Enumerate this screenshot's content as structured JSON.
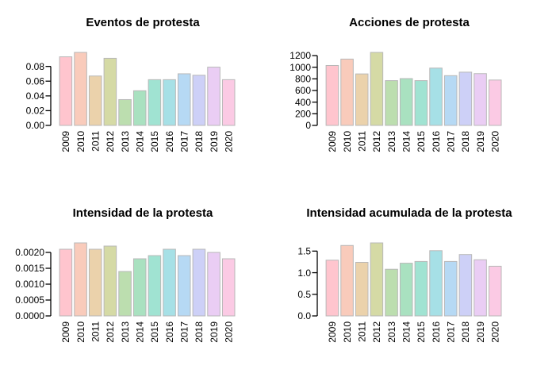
{
  "page": {
    "background": "#ffffff"
  },
  "style": {
    "bar_colors": [
      "#FFC5CE",
      "#F9CBBB",
      "#EBD2AB",
      "#D5DAA5",
      "#BCDEAF",
      "#A9E1C0",
      "#A0E3D2",
      "#A6E0E6",
      "#B6D9F4",
      "#CDD0F7",
      "#EACDF4",
      "#FBCAE4"
    ],
    "bar_border_color": "#b8b8b8",
    "axis_color": "#000000",
    "title_color": "#000000"
  },
  "chart_data": [
    {
      "type": "bar",
      "title": "Eventos de protesta",
      "categories": [
        "2009",
        "2010",
        "2011",
        "2012",
        "2013",
        "2014",
        "2015",
        "2016",
        "2017",
        "2018",
        "2019",
        "2020"
      ],
      "values": [
        0.093,
        0.099,
        0.067,
        0.091,
        0.035,
        0.047,
        0.062,
        0.062,
        0.07,
        0.068,
        0.079,
        0.062
      ],
      "y_ticks": [
        0,
        0.02,
        0.04,
        0.06,
        0.08
      ],
      "y_tick_labels": [
        "0.00",
        "0.02",
        "0.04",
        "0.06",
        "0.08"
      ],
      "ylim": [
        0,
        0.099
      ],
      "xlabel": "",
      "ylabel": "",
      "grid": false,
      "legend": false
    },
    {
      "type": "bar",
      "title": "Acciones de protesta",
      "categories": [
        "2009",
        "2010",
        "2011",
        "2012",
        "2013",
        "2014",
        "2015",
        "2016",
        "2017",
        "2018",
        "2019",
        "2020"
      ],
      "values": [
        1030,
        1140,
        885,
        1255,
        770,
        805,
        770,
        985,
        855,
        915,
        890,
        780
      ],
      "y_ticks": [
        0,
        200,
        400,
        600,
        800,
        1000,
        1200
      ],
      "y_tick_labels": [
        "0",
        "200",
        "400",
        "600",
        "800",
        "1000",
        "1200"
      ],
      "ylim": [
        0,
        1255
      ],
      "xlabel": "",
      "ylabel": "",
      "grid": false,
      "legend": false
    },
    {
      "type": "bar",
      "title": "Intensidad de la protesta",
      "categories": [
        "2009",
        "2010",
        "2011",
        "2012",
        "2013",
        "2014",
        "2015",
        "2016",
        "2017",
        "2018",
        "2019",
        "2020"
      ],
      "values": [
        0.0021,
        0.0023,
        0.0021,
        0.0022,
        0.0014,
        0.0018,
        0.0019,
        0.0021,
        0.0019,
        0.0021,
        0.002,
        0.0018
      ],
      "y_ticks": [
        0,
        0.0005,
        0.001,
        0.0015,
        0.002
      ],
      "y_tick_labels": [
        "0.0000",
        "0.0005",
        "0.0010",
        "0.0015",
        "0.0020"
      ],
      "ylim": [
        0,
        0.0023
      ],
      "xlabel": "",
      "ylabel": "",
      "grid": false,
      "legend": false
    },
    {
      "type": "bar",
      "title": "Intensidad acumulada de la protesta",
      "categories": [
        "2009",
        "2010",
        "2011",
        "2012",
        "2013",
        "2014",
        "2015",
        "2016",
        "2017",
        "2018",
        "2019",
        "2020"
      ],
      "values": [
        1.29,
        1.63,
        1.24,
        1.69,
        1.08,
        1.22,
        1.26,
        1.51,
        1.26,
        1.42,
        1.3,
        1.15
      ],
      "y_ticks": [
        0,
        0.5,
        1.0,
        1.5
      ],
      "y_tick_labels": [
        "0.0",
        "0.5",
        "1.0",
        "1.5"
      ],
      "ylim": [
        0,
        1.69
      ],
      "xlabel": "",
      "ylabel": "",
      "grid": false,
      "legend": false
    }
  ]
}
